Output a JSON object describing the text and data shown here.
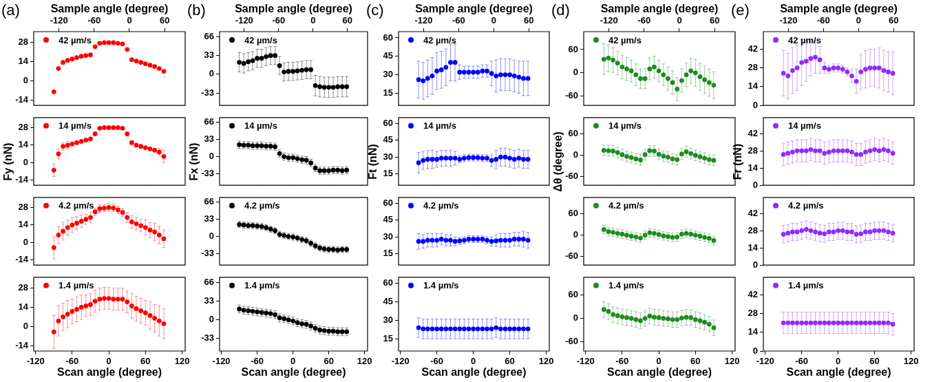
{
  "chart_data": [
    {
      "type": "scatter",
      "annotations": [
        "(a)"
      ],
      "x2label": "Sample angle (degree)",
      "x2lim": [
        -163,
        95
      ],
      "x2ticks": [
        -120,
        -60,
        0,
        60
      ],
      "xlim": [
        -123,
        125
      ],
      "xticks": [
        -120,
        -60,
        0,
        60,
        120
      ],
      "ylim": [
        -18,
        36
      ],
      "yticks": [
        -14,
        0,
        14,
        28
      ],
      "tick_labels": "y",
      "legend": "top left",
      "marker": "circle",
      "x": [
        -90,
        -82.5,
        -75,
        -67.5,
        -60,
        -52.5,
        -45,
        -37.5,
        -30,
        -22.5,
        -15,
        -7.5,
        0,
        7.5,
        15,
        22.5,
        30,
        37.5,
        45,
        52.5,
        60,
        67.5,
        75,
        82.5,
        90
      ],
      "series": [
        {
          "name": "42 µm/s",
          "color": "#ff0000",
          "values": [
            -8,
            9,
            13.5,
            15,
            16,
            17,
            18,
            18.5,
            19,
            25,
            27.5,
            28,
            28,
            28,
            27.5,
            27,
            23,
            15.5,
            14.5,
            13.5,
            12.5,
            11.5,
            10.5,
            9,
            7
          ]
        }
      ]
    },
    {
      "type": "scatter",
      "ylabel": "Fy (nN)",
      "xlim": [
        -123,
        125
      ],
      "xticks": [
        -120,
        -60,
        0,
        60,
        120
      ],
      "ylim": [
        -18,
        36
      ],
      "yticks": [
        -14,
        0,
        14,
        28
      ],
      "tick_labels": "y",
      "legend": "top left",
      "marker": "circle",
      "x": [
        -90,
        -82.5,
        -75,
        -67.5,
        -60,
        -52.5,
        -45,
        -37.5,
        -30,
        -22.5,
        -15,
        -7.5,
        0,
        7.5,
        15,
        22.5,
        30,
        37.5,
        45,
        52.5,
        60,
        67.5,
        75,
        82.5,
        90
      ],
      "series": [
        {
          "name": "14 µm/s",
          "color": "#ff0000",
          "values": [
            -6,
            7,
            13,
            14,
            15,
            16,
            17,
            18,
            19,
            23,
            27.5,
            28,
            28,
            28,
            28,
            27.5,
            23,
            16,
            14,
            13,
            12,
            11,
            10,
            8.5,
            5
          ],
          "errors": [
            5,
            4,
            3,
            3,
            null,
            null,
            null,
            null,
            null,
            null,
            null,
            null,
            null,
            null,
            null,
            null,
            null,
            null,
            null,
            null,
            null,
            null,
            null,
            3,
            5
          ]
        }
      ]
    },
    {
      "type": "scatter",
      "xlim": [
        -123,
        125
      ],
      "xticks": [
        -120,
        -60,
        0,
        60,
        120
      ],
      "ylim": [
        -18,
        36
      ],
      "yticks": [
        -14,
        0,
        14,
        28
      ],
      "tick_labels": "y",
      "legend": "top left",
      "marker": "circle",
      "x": [
        -90,
        -82.5,
        -75,
        -67.5,
        -60,
        -52.5,
        -45,
        -37.5,
        -30,
        -22.5,
        -15,
        -7.5,
        0,
        7.5,
        15,
        22.5,
        30,
        37.5,
        45,
        52.5,
        60,
        67.5,
        75,
        82.5,
        90
      ],
      "series": [
        {
          "name": "4.2 µm/s",
          "color": "#ff0000",
          "values": [
            -4,
            6,
            9,
            12,
            14,
            15.5,
            17,
            18.5,
            20,
            24.5,
            27,
            27.5,
            28,
            27.5,
            26,
            24,
            20,
            16.5,
            15,
            13.5,
            12,
            10,
            8.5,
            6,
            3
          ],
          "errors": [
            9,
            7,
            7,
            6,
            6,
            5,
            5,
            4,
            4,
            3,
            3,
            3,
            3,
            3,
            3,
            3,
            4,
            5,
            5,
            5,
            6,
            6,
            7,
            7,
            7
          ]
        }
      ]
    },
    {
      "type": "scatter",
      "xlabel": "Scan angle (degree)",
      "xlim": [
        -123,
        125
      ],
      "xticks": [
        -120,
        -60,
        0,
        60,
        120
      ],
      "ylim": [
        -18,
        36
      ],
      "yticks": [
        -14,
        0,
        14,
        28
      ],
      "legend": "top left",
      "marker": "circle",
      "x": [
        -90,
        -82.5,
        -75,
        -67.5,
        -60,
        -52.5,
        -45,
        -37.5,
        -30,
        -22.5,
        -15,
        -7.5,
        0,
        7.5,
        15,
        22.5,
        30,
        37.5,
        45,
        52.5,
        60,
        67.5,
        75,
        82.5,
        90
      ],
      "series": [
        {
          "name": "1.4 µm/s",
          "color": "#ff0000",
          "values": [
            -4,
            4,
            7,
            9,
            11,
            12.5,
            14,
            15,
            16,
            18.5,
            20,
            20.5,
            20.5,
            20,
            20,
            20,
            18,
            15,
            13,
            11.5,
            10,
            8,
            6,
            4,
            2
          ],
          "errors": [
            12,
            11,
            10,
            10,
            9,
            9,
            9,
            8,
            8,
            8,
            8,
            8,
            8,
            8,
            8,
            8,
            8,
            9,
            9,
            9,
            9,
            10,
            10,
            11,
            11
          ]
        }
      ]
    },
    {
      "type": "scatter",
      "annotations": [
        "(b)"
      ],
      "x2label": "Sample angle (degree)",
      "x2lim": [
        -163,
        95
      ],
      "x2ticks": [
        -120,
        -60,
        0,
        60
      ],
      "xlim": [
        -123,
        125
      ],
      "xticks": [
        -120,
        -60,
        0,
        60,
        120
      ],
      "ylim": [
        -55,
        75
      ],
      "yticks": [
        -33,
        0,
        33,
        66
      ],
      "tick_labels": "y",
      "legend": "top left",
      "marker": "circle",
      "x": [
        -90,
        -82.5,
        -75,
        -67.5,
        -60,
        -52.5,
        -45,
        -37.5,
        -30,
        -22.5,
        -15,
        -7.5,
        0,
        7.5,
        15,
        22.5,
        30,
        37.5,
        45,
        52.5,
        60,
        67.5,
        75,
        82.5,
        90
      ],
      "series": [
        {
          "name": "42 µm/s",
          "color": "#000000",
          "values": [
            21,
            19,
            22,
            24,
            28,
            28,
            31,
            33,
            33,
            15,
            4,
            5,
            5,
            6,
            7,
            8,
            8,
            -20,
            -22,
            -23,
            -23,
            -23,
            -22,
            -22,
            -22
          ],
          "errors": [
            17,
            17,
            16,
            16,
            16,
            16,
            16,
            16,
            16,
            16,
            16,
            16,
            16,
            16,
            16,
            16,
            16,
            18,
            18,
            18,
            18,
            18,
            18,
            18,
            18
          ]
        }
      ]
    },
    {
      "type": "scatter",
      "ylabel": "Fx (nN)",
      "xlim": [
        -123,
        125
      ],
      "xticks": [
        -120,
        -60,
        0,
        60,
        120
      ],
      "ylim": [
        -55,
        75
      ],
      "yticks": [
        -33,
        0,
        33,
        66
      ],
      "tick_labels": "y",
      "legend": "top left",
      "marker": "circle",
      "x": [
        -90,
        -82.5,
        -75,
        -67.5,
        -60,
        -52.5,
        -45,
        -37.5,
        -30,
        -22.5,
        -15,
        -7.5,
        0,
        7.5,
        15,
        22.5,
        30,
        37.5,
        45,
        52.5,
        60,
        67.5,
        75,
        82.5,
        90
      ],
      "series": [
        {
          "name": "14 µm/s",
          "color": "#000000",
          "values": [
            23,
            22,
            22,
            21,
            21,
            21,
            20,
            20,
            19,
            6,
            0,
            -2,
            -2,
            -4,
            -6,
            -7,
            -12,
            -22,
            -27,
            -27,
            -27,
            -26,
            -26,
            -27,
            -26
          ],
          "errors": [
            7,
            7,
            7,
            7,
            7,
            7,
            7,
            7,
            7,
            7,
            7,
            7,
            7,
            7,
            7,
            7,
            7,
            7,
            7,
            7,
            7,
            7,
            7,
            7,
            7
          ]
        }
      ]
    },
    {
      "type": "scatter",
      "xlim": [
        -123,
        125
      ],
      "xticks": [
        -120,
        -60,
        0,
        60,
        120
      ],
      "ylim": [
        -55,
        75
      ],
      "yticks": [
        -33,
        0,
        33,
        66
      ],
      "tick_labels": "y",
      "legend": "top left",
      "marker": "circle",
      "x": [
        -90,
        -82.5,
        -75,
        -67.5,
        -60,
        -52.5,
        -45,
        -37.5,
        -30,
        -22.5,
        -15,
        -7.5,
        0,
        7.5,
        15,
        22.5,
        30,
        37.5,
        45,
        52.5,
        60,
        67.5,
        75,
        82.5,
        90
      ],
      "series": [
        {
          "name": "4.2 µm/s",
          "color": "#000000",
          "values": [
            23,
            22,
            21,
            21,
            20,
            19,
            17,
            14,
            11,
            4,
            2,
            0,
            -1,
            -3,
            -6,
            -8,
            -13,
            -18,
            -22,
            -24,
            -25,
            -25,
            -26,
            -25,
            -25
          ],
          "errors": [
            6,
            6,
            6,
            6,
            6,
            6,
            6,
            6,
            6,
            6,
            6,
            6,
            6,
            6,
            6,
            6,
            6,
            6,
            6,
            6,
            6,
            6,
            6,
            6,
            6
          ]
        }
      ]
    },
    {
      "type": "scatter",
      "xlabel": "Scan angle (degree)",
      "xlim": [
        -123,
        125
      ],
      "xticks": [
        -120,
        -60,
        0,
        60,
        120
      ],
      "ylim": [
        -55,
        75
      ],
      "yticks": [
        -33,
        0,
        33,
        66
      ],
      "legend": "top left",
      "marker": "circle",
      "x": [
        -90,
        -82.5,
        -75,
        -67.5,
        -60,
        -52.5,
        -45,
        -37.5,
        -30,
        -22.5,
        -15,
        -7.5,
        0,
        7.5,
        15,
        22.5,
        30,
        37.5,
        45,
        52.5,
        60,
        67.5,
        75,
        82.5,
        90
      ],
      "series": [
        {
          "name": "1.4 µm/s",
          "color": "#000000",
          "values": [
            19,
            17,
            16,
            15,
            14,
            13,
            12,
            11,
            9,
            3.5,
            2,
            0,
            -2,
            -5,
            -7,
            -8,
            -11,
            -15,
            -18,
            -19,
            -20,
            -20,
            -21,
            -21,
            -21
          ],
          "errors": [
            7,
            7,
            7,
            7,
            7,
            7,
            7,
            7,
            7,
            7,
            7,
            7,
            7,
            7,
            7,
            7,
            7,
            7,
            7,
            7,
            7,
            7,
            7,
            7,
            7
          ]
        }
      ]
    },
    {
      "type": "scatter",
      "annotations": [
        "(c)"
      ],
      "x2label": "Sample angle (degree)",
      "x2lim": [
        -163,
        95
      ],
      "x2ticks": [
        -120,
        -60,
        0,
        60
      ],
      "xlim": [
        -123,
        125
      ],
      "xticks": [
        -120,
        -60,
        0,
        60,
        120
      ],
      "ylim": [
        5,
        65
      ],
      "yticks": [
        15,
        30,
        45,
        60
      ],
      "tick_labels": "y",
      "legend": "top left",
      "marker": "circle",
      "x": [
        -90,
        -82.5,
        -75,
        -67.5,
        -60,
        -52.5,
        -45,
        -37.5,
        -30,
        -22.5,
        -15,
        -7.5,
        0,
        7.5,
        15,
        22.5,
        30,
        37.5,
        45,
        52.5,
        60,
        67.5,
        75,
        82.5,
        90
      ],
      "series": [
        {
          "name": "42 µm/s",
          "color": "#0000ff",
          "values": [
            26,
            25,
            27,
            29,
            33,
            34,
            36,
            40,
            40,
            32,
            32,
            32,
            32,
            32,
            33,
            33,
            31,
            29,
            30,
            30,
            30,
            29,
            28,
            27,
            27
          ],
          "errors": [
            15,
            15,
            15,
            15,
            15,
            15,
            15,
            15,
            15,
            6,
            5,
            5,
            5,
            5,
            5,
            5,
            10,
            13,
            13,
            13,
            13,
            13,
            13,
            14,
            14
          ]
        }
      ]
    },
    {
      "type": "scatter",
      "ylabel": "Ft (nN)",
      "xlim": [
        -123,
        125
      ],
      "xticks": [
        -120,
        -60,
        0,
        60,
        120
      ],
      "ylim": [
        5,
        65
      ],
      "yticks": [
        15,
        30,
        45,
        60
      ],
      "tick_labels": "y",
      "legend": "top left",
      "marker": "circle",
      "x": [
        -90,
        -82.5,
        -75,
        -67.5,
        -60,
        -52.5,
        -45,
        -37.5,
        -30,
        -22.5,
        -15,
        -7.5,
        0,
        7.5,
        15,
        22.5,
        30,
        37.5,
        45,
        52.5,
        60,
        67.5,
        75,
        82.5,
        90
      ],
      "series": [
        {
          "name": "14 µm/s",
          "color": "#0000ff",
          "values": [
            25,
            27,
            28,
            28,
            28,
            29,
            29,
            29,
            29,
            28,
            29,
            29.5,
            29.5,
            29.5,
            29,
            29,
            27,
            28,
            30,
            30,
            29,
            28,
            29,
            28,
            28
          ],
          "errors": [
            9,
            8,
            8,
            8,
            7,
            7,
            7,
            7,
            6,
            3,
            3,
            3,
            3,
            3,
            3,
            3,
            5,
            8,
            8,
            8,
            8,
            8,
            8,
            8,
            8
          ]
        }
      ]
    },
    {
      "type": "scatter",
      "xlim": [
        -123,
        125
      ],
      "xticks": [
        -120,
        -60,
        0,
        60,
        120
      ],
      "ylim": [
        5,
        65
      ],
      "yticks": [
        15,
        30,
        45,
        60
      ],
      "tick_labels": "y",
      "legend": "top left",
      "marker": "circle",
      "x": [
        -90,
        -82.5,
        -75,
        -67.5,
        -60,
        -52.5,
        -45,
        -37.5,
        -30,
        -22.5,
        -15,
        -7.5,
        0,
        7.5,
        15,
        22.5,
        30,
        37.5,
        45,
        52.5,
        60,
        67.5,
        75,
        82.5,
        90
      ],
      "series": [
        {
          "name": "4.2 µm/s",
          "color": "#0000ff",
          "values": [
            26,
            26,
            27,
            27,
            27,
            28,
            27,
            27,
            26,
            26.5,
            27,
            28,
            28,
            28,
            28,
            27,
            26,
            26.5,
            27,
            27,
            27,
            28,
            28,
            28,
            27
          ],
          "errors": [
            7,
            6,
            6,
            6,
            6,
            5,
            5,
            5,
            4,
            3,
            3,
            3,
            3,
            3,
            3,
            3,
            4,
            5,
            6,
            6,
            6,
            6,
            6,
            7,
            7
          ]
        }
      ]
    },
    {
      "type": "scatter",
      "xlabel": "Scan angle (degree)",
      "xlim": [
        -123,
        125
      ],
      "xticks": [
        -120,
        -60,
        0,
        60,
        120
      ],
      "ylim": [
        5,
        65
      ],
      "yticks": [
        15,
        30,
        45,
        60
      ],
      "legend": "top left",
      "marker": "circle",
      "x": [
        -90,
        -82.5,
        -75,
        -67.5,
        -60,
        -52.5,
        -45,
        -37.5,
        -30,
        -22.5,
        -15,
        -7.5,
        0,
        7.5,
        15,
        22.5,
        30,
        37.5,
        45,
        52.5,
        60,
        67.5,
        75,
        82.5,
        90
      ],
      "series": [
        {
          "name": "1.4 µm/s",
          "color": "#0000ff",
          "values": [
            24,
            23,
            23,
            23,
            23,
            23,
            23,
            23,
            23,
            23,
            23,
            23,
            23,
            23,
            23,
            23,
            23,
            24,
            23,
            23,
            23,
            23,
            23,
            23,
            23
          ],
          "errors": [
            8,
            8,
            8,
            8,
            8,
            8,
            8,
            8,
            8,
            8,
            8,
            8,
            8,
            8,
            8,
            8,
            8,
            8,
            8,
            8,
            8,
            8,
            8,
            8,
            8
          ]
        }
      ]
    },
    {
      "type": "scatter",
      "annotations": [
        "(d)"
      ],
      "x2label": "Sample angle (degree)",
      "x2lim": [
        -163,
        95
      ],
      "x2ticks": [
        -120,
        -60,
        0,
        60
      ],
      "xlim": [
        -123,
        125
      ],
      "xticks": [
        -120,
        -60,
        0,
        60,
        120
      ],
      "ylim": [
        -84,
        106
      ],
      "yticks": [
        -60,
        0,
        60
      ],
      "tick_labels": "y",
      "legend": "top left",
      "marker": "circle",
      "x": [
        -90,
        -82.5,
        -75,
        -67.5,
        -60,
        -52.5,
        -45,
        -37.5,
        -30,
        -22.5,
        -15,
        -7.5,
        0,
        7.5,
        15,
        22.5,
        30,
        37.5,
        45,
        52.5,
        60,
        67.5,
        75,
        82.5,
        90
      ],
      "series": [
        {
          "name": "42 µm/s",
          "color": "#1e8c1e",
          "values": [
            35,
            38,
            33,
            25,
            15,
            10,
            5,
            -5,
            -15,
            -15,
            10,
            15,
            5,
            -5,
            -15,
            -25,
            -42,
            -20,
            -5,
            5,
            0,
            -10,
            -18,
            -25,
            -32
          ],
          "errors": [
            40,
            35,
            32,
            30,
            30,
            30,
            28,
            28,
            25,
            26,
            28,
            28,
            28,
            28,
            30,
            30,
            30,
            30,
            30,
            32,
            35,
            35,
            35,
            35,
            35
          ]
        }
      ]
    },
    {
      "type": "scatter",
      "ylabel": "Δθ (degree)",
      "xlim": [
        -123,
        125
      ],
      "xticks": [
        -120,
        -60,
        0,
        60,
        120
      ],
      "ylim": [
        -84,
        106
      ],
      "yticks": [
        -60,
        0,
        60
      ],
      "tick_labels": "y",
      "legend": "top left",
      "marker": "circle",
      "x": [
        -90,
        -82.5,
        -75,
        -67.5,
        -60,
        -52.5,
        -45,
        -37.5,
        -30,
        -22.5,
        -15,
        -7.5,
        0,
        7.5,
        15,
        22.5,
        30,
        37.5,
        45,
        52.5,
        60,
        67.5,
        75,
        82.5,
        90
      ],
      "series": [
        {
          "name": "14 µm/s",
          "color": "#1e8c1e",
          "values": [
            14,
            13,
            12,
            8,
            2,
            -3,
            -6,
            -10,
            -13,
            2,
            13,
            12,
            3,
            -2,
            -5,
            -10,
            -12,
            4,
            10,
            5,
            0,
            -4,
            -8,
            -12,
            -14
          ],
          "errors": [
            15,
            15,
            15,
            15,
            15,
            15,
            15,
            15,
            15,
            15,
            15,
            15,
            15,
            15,
            15,
            15,
            15,
            15,
            15,
            15,
            15,
            15,
            15,
            15,
            15
          ]
        }
      ]
    },
    {
      "type": "scatter",
      "xlim": [
        -123,
        125
      ],
      "xticks": [
        -120,
        -60,
        0,
        60,
        120
      ],
      "ylim": [
        -84,
        106
      ],
      "yticks": [
        -60,
        0,
        60
      ],
      "tick_labels": "y",
      "legend": "top left",
      "marker": "circle",
      "x": [
        -90,
        -82.5,
        -75,
        -67.5,
        -60,
        -52.5,
        -45,
        -37.5,
        -30,
        -22.5,
        -15,
        -7.5,
        0,
        7.5,
        15,
        22.5,
        30,
        37.5,
        45,
        52.5,
        60,
        67.5,
        75,
        82.5,
        90
      ],
      "series": [
        {
          "name": "4.2 µm/s",
          "color": "#1e8c1e",
          "values": [
            16,
            10,
            8,
            5,
            3,
            0,
            -3,
            -5,
            -8,
            0,
            7,
            5,
            2,
            -2,
            -4,
            -6,
            -5,
            3,
            5,
            3,
            0,
            -3,
            -6,
            -9,
            -15
          ],
          "errors": [
            12,
            12,
            12,
            12,
            12,
            12,
            12,
            12,
            12,
            12,
            12,
            12,
            12,
            12,
            12,
            12,
            12,
            12,
            12,
            12,
            12,
            12,
            12,
            12,
            12
          ]
        }
      ]
    },
    {
      "type": "scatter",
      "xlabel": "Scan angle (degree)",
      "xlim": [
        -123,
        125
      ],
      "xticks": [
        -120,
        -60,
        0,
        60,
        120
      ],
      "ylim": [
        -84,
        106
      ],
      "yticks": [
        -60,
        0,
        60
      ],
      "legend": "top left",
      "marker": "circle",
      "x": [
        -90,
        -82.5,
        -75,
        -67.5,
        -60,
        -52.5,
        -45,
        -37.5,
        -30,
        -22.5,
        -15,
        -7.5,
        0,
        7.5,
        15,
        22.5,
        30,
        37.5,
        45,
        52.5,
        60,
        67.5,
        75,
        82.5,
        90
      ],
      "series": [
        {
          "name": "1.4 µm/s",
          "color": "#1e8c1e",
          "values": [
            23,
            18,
            10,
            7,
            4,
            2,
            0,
            -3,
            -6,
            0,
            6,
            3,
            2,
            0,
            -1,
            -3,
            -3,
            1,
            3,
            2,
            -3,
            -6,
            -10,
            -15,
            -24
          ],
          "errors": [
            20,
            20,
            20,
            20,
            20,
            20,
            20,
            20,
            20,
            20,
            20,
            20,
            20,
            20,
            20,
            20,
            20,
            20,
            20,
            20,
            20,
            20,
            20,
            20,
            20
          ]
        }
      ]
    },
    {
      "type": "scatter",
      "annotations": [
        "(e)"
      ],
      "x2label": "Sample angle (degree)",
      "x2lim": [
        -163,
        95
      ],
      "x2ticks": [
        -120,
        -60,
        0,
        60
      ],
      "xlim": [
        -123,
        125
      ],
      "xticks": [
        -120,
        -60,
        0,
        60,
        120
      ],
      "ylim": [
        0,
        55
      ],
      "yticks": [
        0,
        14,
        28,
        42
      ],
      "tick_labels": "y",
      "legend": "top left",
      "marker": "circle",
      "x": [
        -90,
        -82.5,
        -75,
        -67.5,
        -60,
        -52.5,
        -45,
        -37.5,
        -30,
        -22.5,
        -15,
        -7.5,
        0,
        7.5,
        15,
        22.5,
        30,
        37.5,
        45,
        52.5,
        60,
        67.5,
        75,
        82.5,
        90
      ],
      "series": [
        {
          "name": "42 µm/s",
          "color": "#8f2bff",
          "values": [
            24,
            22,
            26,
            28,
            32,
            33,
            35,
            36,
            34,
            28,
            27,
            28,
            28,
            27,
            25,
            22,
            18,
            25,
            27,
            28,
            28,
            28,
            26,
            25,
            24
          ],
          "errors": [
            17,
            17,
            17,
            17,
            17,
            15,
            13,
            12,
            10,
            4,
            3,
            3,
            3,
            3,
            3,
            5,
            9,
            13,
            14,
            14,
            14,
            15,
            15,
            15,
            16
          ]
        }
      ]
    },
    {
      "type": "scatter",
      "ylabel": "Fr (nN)",
      "xlim": [
        -123,
        125
      ],
      "xticks": [
        -120,
        -60,
        0,
        60,
        120
      ],
      "ylim": [
        0,
        55
      ],
      "yticks": [
        0,
        14,
        28,
        42
      ],
      "tick_labels": "y",
      "legend": "top left",
      "marker": "circle",
      "x": [
        -90,
        -82.5,
        -75,
        -67.5,
        -60,
        -52.5,
        -45,
        -37.5,
        -30,
        -22.5,
        -15,
        -7.5,
        0,
        7.5,
        15,
        22.5,
        30,
        37.5,
        45,
        52.5,
        60,
        67.5,
        75,
        82.5,
        90
      ],
      "series": [
        {
          "name": "14 µm/s",
          "color": "#8f2bff",
          "values": [
            25,
            26,
            27,
            28,
            28,
            28,
            29,
            28,
            28,
            26,
            27,
            28,
            28,
            28,
            28,
            27,
            25,
            25,
            27,
            28,
            29,
            28,
            29,
            28,
            26
          ],
          "errors": [
            9,
            9,
            9,
            9,
            9,
            9,
            9,
            9,
            9,
            9,
            9,
            9,
            9,
            9,
            9,
            9,
            9,
            9,
            9,
            9,
            9,
            9,
            9,
            9,
            9
          ]
        }
      ]
    },
    {
      "type": "scatter",
      "xlim": [
        -123,
        125
      ],
      "xticks": [
        -120,
        -60,
        0,
        60,
        120
      ],
      "ylim": [
        0,
        55
      ],
      "yticks": [
        0,
        14,
        28,
        42
      ],
      "tick_labels": "y",
      "legend": "top left",
      "marker": "circle",
      "x": [
        -90,
        -82.5,
        -75,
        -67.5,
        -60,
        -52.5,
        -45,
        -37.5,
        -30,
        -22.5,
        -15,
        -7.5,
        0,
        7.5,
        15,
        22.5,
        30,
        37.5,
        45,
        52.5,
        60,
        67.5,
        75,
        82.5,
        90
      ],
      "series": [
        {
          "name": "4.2 µm/s",
          "color": "#8f2bff",
          "values": [
            25,
            26,
            27,
            27,
            28,
            29,
            28,
            27,
            26,
            25.5,
            27,
            27,
            28,
            28,
            27,
            27,
            25,
            25.5,
            27,
            27,
            28,
            28,
            28,
            27,
            26
          ],
          "errors": [
            7,
            7,
            7,
            7,
            7,
            7,
            7,
            7,
            7,
            7,
            7,
            7,
            7,
            7,
            7,
            7,
            7,
            7,
            7,
            7,
            7,
            7,
            7,
            7,
            7
          ]
        }
      ]
    },
    {
      "type": "scatter",
      "xlabel": "Scan angle (degree)",
      "xlim": [
        -123,
        125
      ],
      "xticks": [
        -120,
        -60,
        0,
        60,
        120
      ],
      "ylim": [
        0,
        55
      ],
      "yticks": [
        0,
        14,
        28,
        42
      ],
      "legend": "top left",
      "marker": "circle",
      "x": [
        -90,
        -82.5,
        -75,
        -67.5,
        -60,
        -52.5,
        -45,
        -37.5,
        -30,
        -22.5,
        -15,
        -7.5,
        0,
        7.5,
        15,
        22.5,
        30,
        37.5,
        45,
        52.5,
        60,
        67.5,
        75,
        82.5,
        90
      ],
      "series": [
        {
          "name": "1.4 µm/s",
          "color": "#8f2bff",
          "values": [
            21,
            21,
            21,
            21,
            21,
            21,
            21,
            21,
            21,
            21,
            21,
            21,
            21,
            21,
            21,
            21,
            21,
            21,
            21,
            21,
            21,
            21,
            21,
            21,
            20
          ],
          "errors": [
            8,
            8,
            8,
            8,
            8,
            8,
            8,
            8,
            8,
            8,
            8,
            8,
            8,
            8,
            8,
            8,
            8,
            8,
            8,
            8,
            8,
            8,
            8,
            8,
            8
          ]
        }
      ]
    }
  ]
}
